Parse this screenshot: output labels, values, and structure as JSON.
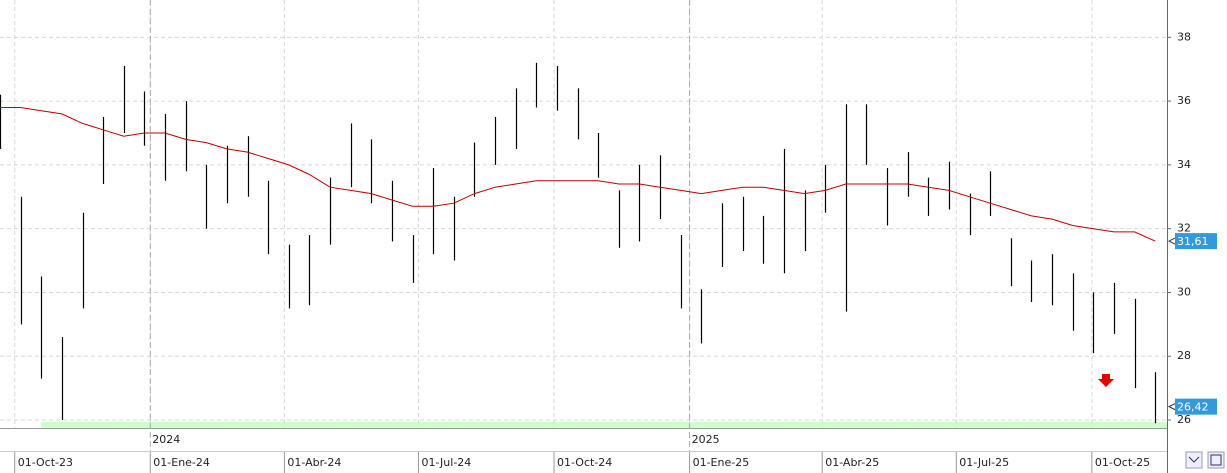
{
  "chart_data": {
    "type": "ohlc",
    "x": [
      "2023-09-21",
      "2023-10-05",
      "2023-10-19",
      "2023-11-02",
      "2023-11-16",
      "2023-11-30",
      "2023-12-14",
      "2023-12-28",
      "2024-01-11",
      "2024-01-25",
      "2024-02-08",
      "2024-02-22",
      "2024-03-07",
      "2024-03-21",
      "2024-04-04",
      "2024-04-18",
      "2024-05-02",
      "2024-05-16",
      "2024-05-30",
      "2024-06-13",
      "2024-06-27",
      "2024-07-11",
      "2024-07-25",
      "2024-08-08",
      "2024-08-22",
      "2024-09-05",
      "2024-09-19",
      "2024-10-03",
      "2024-10-17",
      "2024-10-31",
      "2024-11-14",
      "2024-11-28",
      "2024-12-12",
      "2024-12-26",
      "2025-01-09",
      "2025-01-23",
      "2025-02-06",
      "2025-02-20",
      "2025-03-06",
      "2025-03-20",
      "2025-04-03",
      "2025-04-17",
      "2025-05-01",
      "2025-05-15",
      "2025-05-29",
      "2025-06-12",
      "2025-06-26",
      "2025-07-10",
      "2025-07-24",
      "2025-08-07",
      "2025-08-21",
      "2025-09-04",
      "2025-09-18",
      "2025-10-02",
      "2025-10-16",
      "2025-10-30",
      "2025-11-13"
    ],
    "high": [
      36.2,
      33,
      30.5,
      28.6,
      32.5,
      35.5,
      37.1,
      36.3,
      35.6,
      36,
      34,
      34.6,
      34.9,
      33.5,
      31.5,
      31.8,
      33.6,
      35.3,
      34.8,
      33.5,
      31.8,
      33.9,
      33,
      34.7,
      35.5,
      36.4,
      37.2,
      37.1,
      36.4,
      35,
      33.2,
      34,
      34.3,
      31.8,
      30.1,
      32.8,
      33,
      32.4,
      34.5,
      33.2,
      34,
      35.9,
      35.9,
      33.9,
      34.4,
      33.6,
      34.1,
      33.1,
      33.8,
      31.7,
      31,
      31.2,
      30.6,
      30,
      30.3,
      29.8,
      27.5
    ],
    "low": [
      34.5,
      29,
      27.3,
      26,
      29.5,
      33.4,
      35,
      34.6,
      33.5,
      33.8,
      32,
      32.8,
      33,
      31.2,
      29.5,
      29.6,
      31.5,
      33.3,
      32.8,
      31.6,
      30.3,
      31.2,
      31,
      33,
      34,
      34.5,
      35.8,
      35.7,
      34.8,
      33.6,
      31.4,
      31.6,
      32.3,
      29.5,
      28.4,
      30.8,
      31.3,
      30.9,
      30.6,
      31.3,
      32.5,
      29.4,
      34,
      32.1,
      33,
      32.4,
      32.6,
      31.8,
      32.4,
      30.2,
      29.7,
      29.6,
      28.8,
      28.1,
      28.7,
      27,
      25.9
    ],
    "color": "#000000",
    "moving_average": {
      "color": "#c00000",
      "values": [
        35.8,
        35.8,
        35.7,
        35.6,
        35.3,
        35.1,
        34.9,
        35,
        35,
        34.8,
        34.7,
        34.5,
        34.4,
        34.2,
        34,
        33.7,
        33.3,
        33.2,
        33.1,
        32.9,
        32.7,
        32.7,
        32.8,
        33.1,
        33.3,
        33.4,
        33.5,
        33.5,
        33.5,
        33.5,
        33.4,
        33.4,
        33.3,
        33.2,
        33.1,
        33.2,
        33.3,
        33.3,
        33.2,
        33.1,
        33.2,
        33.4,
        33.4,
        33.4,
        33.4,
        33.3,
        33.2,
        33,
        32.8,
        32.6,
        32.4,
        32.3,
        32.1,
        32,
        31.9,
        31.9,
        31.61
      ]
    },
    "last_labels": {
      "color": "#3399dd",
      "values": [
        31.61,
        26.42
      ],
      "value_labels": [
        "31,61",
        "26,42"
      ]
    },
    "support_level": {
      "value": 25.85,
      "color": "#ccffcc"
    },
    "ylim": [
      25.75,
      39.17
    ],
    "yticks": [
      26,
      28,
      30,
      32,
      34,
      36,
      38
    ],
    "xlim": [
      "2023-09-21",
      "2025-11-21"
    ],
    "xticks": [
      {
        "value": "2023-10-01",
        "label": "01-Oct-23"
      },
      {
        "value": "2024-01-01",
        "label": "01-Ene-24"
      },
      {
        "value": "2024-04-01",
        "label": "01-Abr-24"
      },
      {
        "value": "2024-07-01",
        "label": "01-Jul-24"
      },
      {
        "value": "2024-10-01",
        "label": "01-Oct-24"
      },
      {
        "value": "2025-01-01",
        "label": "01-Ene-25"
      },
      {
        "value": "2025-04-01",
        "label": "01-Abr-25"
      },
      {
        "value": "2025-07-01",
        "label": "01-Jul-25"
      },
      {
        "value": "2025-10-01",
        "label": "01-Oct-25"
      }
    ],
    "year_ticks": [
      {
        "value": "2024-01-01",
        "label": "2024"
      },
      {
        "value": "2025-01-01",
        "label": "2025"
      }
    ],
    "grid": true
  }
}
